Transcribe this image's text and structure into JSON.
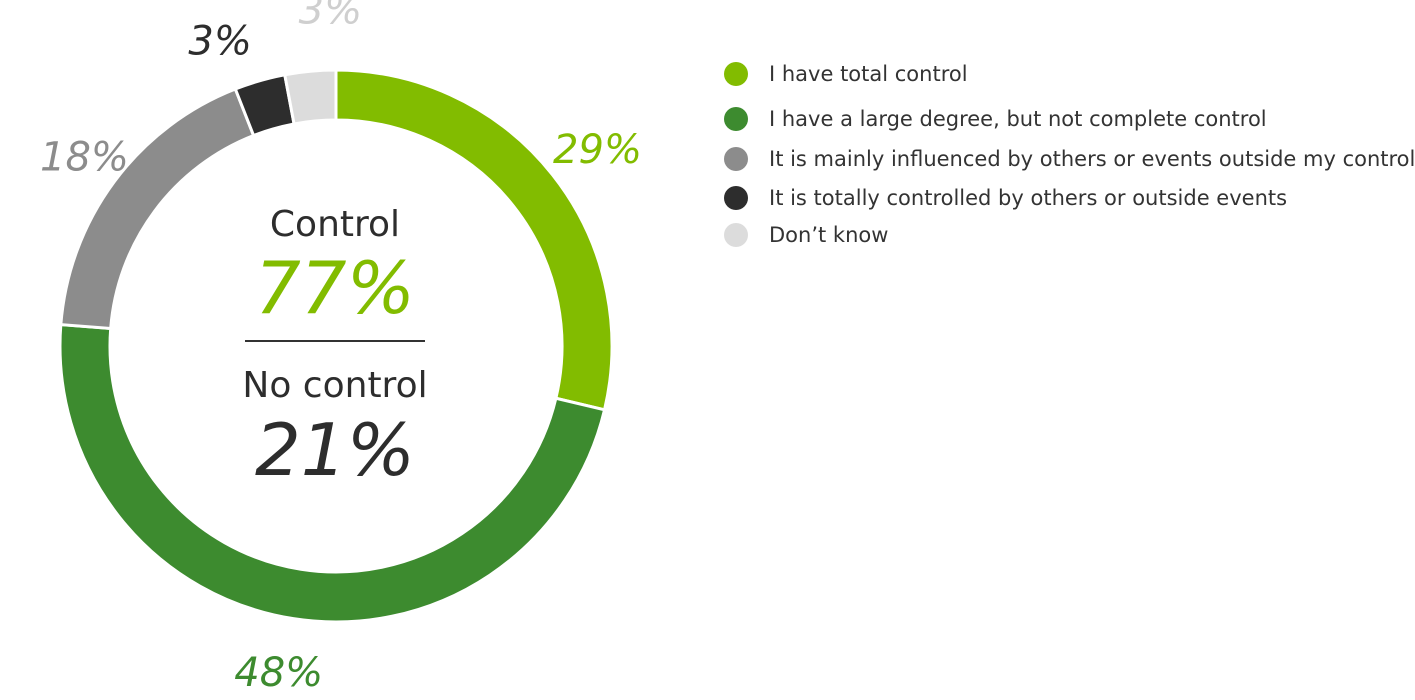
{
  "chart_data": {
    "type": "pie",
    "style": "donut",
    "slices": [
      {
        "label": "I have total control",
        "value": 29,
        "display": "29%",
        "color": "#82bc00"
      },
      {
        "label": "I have a large degree, but not complete control",
        "value": 48,
        "display": "48%",
        "color": "#3d8b2f"
      },
      {
        "label": "It is mainly influenced by others or events outside my control",
        "value": 18,
        "display": "18%",
        "color": "#8c8c8c"
      },
      {
        "label": "It is totally controlled by others or outside events",
        "value": 3,
        "display": "3%",
        "color": "#2d2d2d"
      },
      {
        "label": "Don’t know",
        "value": 3,
        "display": "3%",
        "color": "#dcdcdc"
      }
    ],
    "legend_placement": "right",
    "center": {
      "control_label": "Control",
      "control_value": "77%",
      "control_color": "#82bc00",
      "no_control_label": "No control",
      "no_control_value": "21%",
      "no_control_color": "#2d2d2d"
    }
  }
}
